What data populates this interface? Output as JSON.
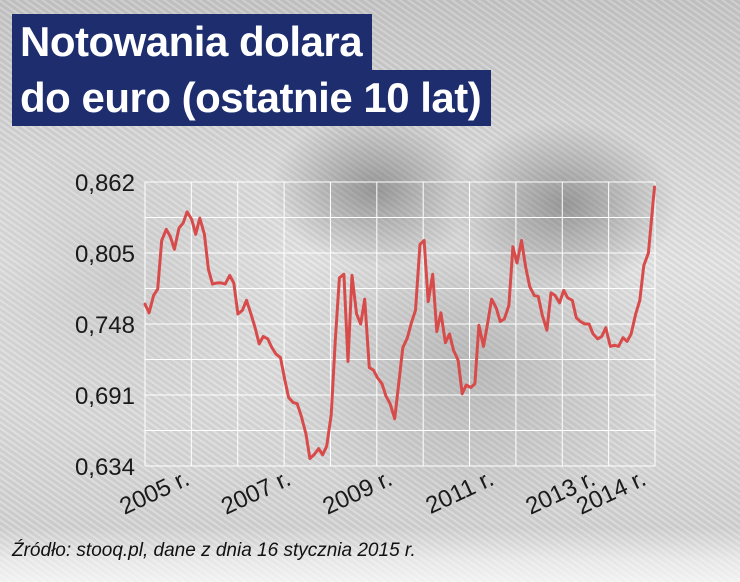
{
  "title_line1": "Notowania dolara",
  "title_line2": "do euro (ostatnie 10 lat)",
  "source": "Źródło: stooq.pl, dane z dnia 16 stycznia 2015 r.",
  "colors": {
    "line": "#d84b4b",
    "title_bg": "#1d2d6e",
    "grid": "#ffffff"
  },
  "chart_data": {
    "type": "line",
    "title": "Notowania dolara do euro (ostatnie 10 lat)",
    "ylim": [
      0.634,
      0.862
    ],
    "xlim": [
      2005.0,
      2015.05
    ],
    "yticks": [
      "0,634",
      "0,691",
      "0,748",
      "0,805",
      "0,862"
    ],
    "ytick_values": [
      0.634,
      0.691,
      0.748,
      0.805,
      0.862
    ],
    "xticks": [
      "2005 r.",
      "2007 r.",
      "2009 r.",
      "2011 r.",
      "2013 r.",
      "2014 r."
    ],
    "xtick_values": [
      2005.0,
      2007.0,
      2009.0,
      2011.0,
      2013.0,
      2014.0
    ],
    "grid": true,
    "series": [
      {
        "x": [
          2005.0,
          2005.08,
          2005.17,
          2005.25,
          2005.33,
          2005.42,
          2005.5,
          2005.58,
          2005.67,
          2005.75,
          2005.83,
          2005.92,
          2006.0,
          2006.08,
          2006.17,
          2006.25,
          2006.33,
          2006.42,
          2006.5,
          2006.58,
          2006.67,
          2006.75,
          2006.83,
          2006.92,
          2007.0,
          2007.08,
          2007.17,
          2007.25,
          2007.33,
          2007.42,
          2007.5,
          2007.58,
          2007.67,
          2007.75,
          2007.83,
          2007.92,
          2008.0,
          2008.08,
          2008.17,
          2008.25,
          2008.33,
          2008.42,
          2008.5,
          2008.58,
          2008.67,
          2008.75,
          2008.83,
          2008.92,
          2009.0,
          2009.08,
          2009.17,
          2009.25,
          2009.33,
          2009.42,
          2009.5,
          2009.58,
          2009.67,
          2009.75,
          2009.83,
          2009.92,
          2010.0,
          2010.08,
          2010.17,
          2010.25,
          2010.33,
          2010.42,
          2010.5,
          2010.58,
          2010.67,
          2010.75,
          2010.83,
          2010.92,
          2011.0,
          2011.08,
          2011.17,
          2011.25,
          2011.33,
          2011.42,
          2011.5,
          2011.58,
          2011.67,
          2011.75,
          2011.83,
          2011.92,
          2012.0,
          2012.08,
          2012.17,
          2012.25,
          2012.33,
          2012.42,
          2012.5,
          2012.58,
          2012.67,
          2012.75,
          2012.83,
          2012.92,
          2013.0,
          2013.08,
          2013.17,
          2013.25,
          2013.33,
          2013.42,
          2013.5,
          2013.58,
          2013.67,
          2013.75,
          2013.83,
          2013.92,
          2014.0,
          2014.08,
          2014.17,
          2014.25,
          2014.33,
          2014.42,
          2014.5,
          2014.58,
          2014.67,
          2014.75,
          2014.83,
          2014.92,
          2015.04
        ],
        "y": [
          0.764,
          0.757,
          0.771,
          0.776,
          0.815,
          0.824,
          0.818,
          0.808,
          0.825,
          0.829,
          0.838,
          0.832,
          0.82,
          0.833,
          0.82,
          0.792,
          0.78,
          0.781,
          0.781,
          0.78,
          0.787,
          0.781,
          0.756,
          0.759,
          0.767,
          0.757,
          0.745,
          0.732,
          0.738,
          0.736,
          0.729,
          0.724,
          0.721,
          0.704,
          0.689,
          0.685,
          0.684,
          0.674,
          0.66,
          0.64,
          0.643,
          0.648,
          0.643,
          0.65,
          0.675,
          0.735,
          0.785,
          0.788,
          0.718,
          0.787,
          0.756,
          0.748,
          0.768,
          0.713,
          0.711,
          0.705,
          0.7,
          0.69,
          0.684,
          0.672,
          0.7,
          0.729,
          0.737,
          0.749,
          0.759,
          0.812,
          0.815,
          0.766,
          0.788,
          0.742,
          0.757,
          0.733,
          0.74,
          0.727,
          0.719,
          0.692,
          0.699,
          0.697,
          0.7,
          0.747,
          0.73,
          0.748,
          0.768,
          0.761,
          0.75,
          0.752,
          0.763,
          0.81,
          0.797,
          0.815,
          0.794,
          0.778,
          0.771,
          0.77,
          0.755,
          0.743,
          0.773,
          0.771,
          0.765,
          0.775,
          0.769,
          0.767,
          0.753,
          0.75,
          0.748,
          0.748,
          0.74,
          0.736,
          0.738,
          0.745,
          0.73,
          0.731,
          0.73,
          0.737,
          0.734,
          0.74,
          0.756,
          0.767,
          0.795,
          0.805,
          0.858
        ]
      }
    ]
  }
}
